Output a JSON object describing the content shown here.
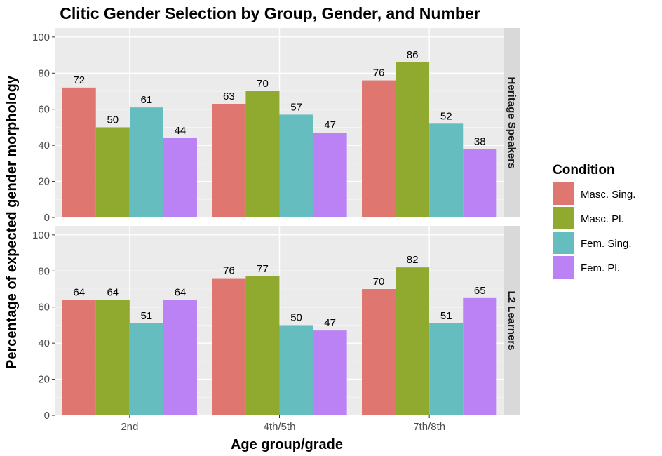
{
  "chart_data": {
    "type": "bar",
    "title": "Clitic Gender Selection by Group, Gender, and Number",
    "xlabel": "Age group/grade",
    "ylabel": "Percentage of expected gender morphology",
    "ylim": [
      0,
      105
    ],
    "yticks": [
      0,
      20,
      40,
      60,
      80,
      100
    ],
    "categories": [
      "2nd",
      "4th/5th",
      "7th/8th"
    ],
    "legend": {
      "title": "Condition",
      "position": "right",
      "entries": [
        "Masc. Sing.",
        "Masc. Pl.",
        "Fem. Sing.",
        "Fem. Pl."
      ]
    },
    "colors": [
      "#E07670",
      "#8FAA2F",
      "#66BDBF",
      "#BB82F5"
    ],
    "panels": [
      {
        "name": "Heritage Speakers",
        "series": [
          {
            "name": "Masc. Sing.",
            "values": [
              72,
              63,
              76
            ]
          },
          {
            "name": "Masc. Pl.",
            "values": [
              50,
              70,
              86
            ]
          },
          {
            "name": "Fem. Sing.",
            "values": [
              61,
              57,
              52
            ]
          },
          {
            "name": "Fem. Pl.",
            "values": [
              44,
              47,
              38
            ]
          }
        ]
      },
      {
        "name": "L2 Learners",
        "series": [
          {
            "name": "Masc. Sing.",
            "values": [
              64,
              76,
              70
            ]
          },
          {
            "name": "Masc. Pl.",
            "values": [
              64,
              77,
              82
            ]
          },
          {
            "name": "Fem. Sing.",
            "values": [
              51,
              50,
              51
            ]
          },
          {
            "name": "Fem. Pl.",
            "values": [
              64,
              47,
              65
            ]
          }
        ]
      }
    ]
  }
}
